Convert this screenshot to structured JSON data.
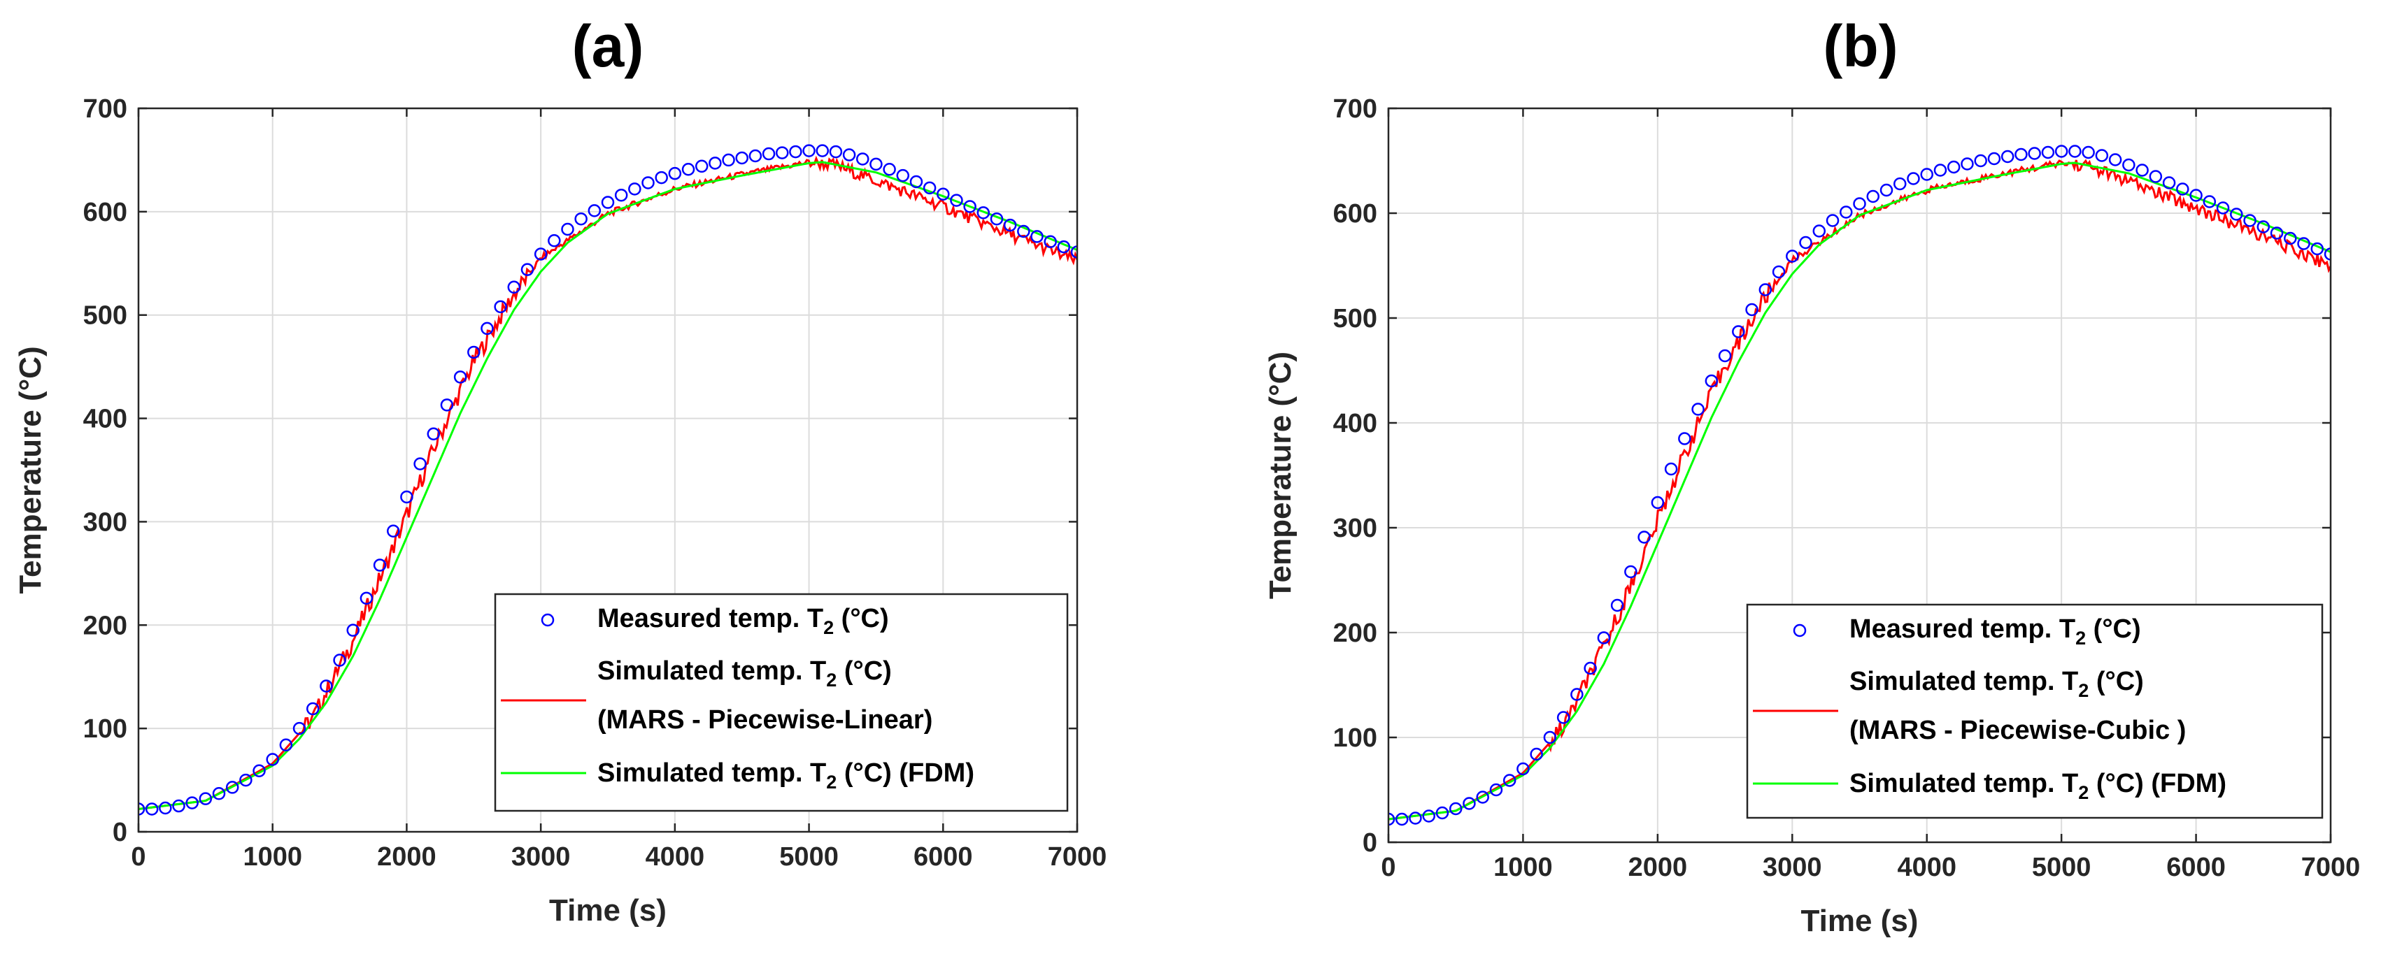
{
  "chart_data": [
    {
      "type": "line",
      "panel": "(a)",
      "xlabel": "Time (s)",
      "ylabel": "Temperature (°C)",
      "xlim": [
        0,
        7000
      ],
      "ylim": [
        0,
        700
      ],
      "xticks": [
        0,
        1000,
        2000,
        3000,
        4000,
        5000,
        6000,
        7000
      ],
      "yticks": [
        0,
        100,
        200,
        300,
        400,
        500,
        600,
        700
      ],
      "grid": true,
      "legend_position": "bottom-right",
      "series": [
        {
          "name": "Measured temp. T2 (°C)",
          "label_main": "Measured temp. T",
          "label_sub": "2",
          "label_tail": " (°C)",
          "style": "markers",
          "color": "#0000ff",
          "x": [
            0,
            100,
            200,
            300,
            400,
            500,
            600,
            700,
            800,
            900,
            1000,
            1100,
            1200,
            1300,
            1400,
            1500,
            1600,
            1700,
            1800,
            1900,
            2000,
            2100,
            2200,
            2300,
            2400,
            2500,
            2600,
            2700,
            2800,
            2900,
            3000,
            3100,
            3200,
            3300,
            3400,
            3500,
            3600,
            3700,
            3800,
            3900,
            4000,
            4100,
            4200,
            4300,
            4400,
            4500,
            4600,
            4700,
            4800,
            4900,
            5000,
            5100,
            5200,
            5300,
            5400,
            5500,
            5600,
            5700,
            5800,
            5900,
            6000,
            6100,
            6200,
            6300,
            6400,
            6500,
            6600,
            6700,
            6800,
            6900,
            7000
          ],
          "y": [
            22,
            22,
            23,
            25,
            28,
            32,
            37,
            43,
            50,
            59,
            70,
            84,
            100,
            119,
            141,
            166,
            195,
            226,
            258,
            291,
            324,
            356,
            385,
            413,
            440,
            464,
            487,
            508,
            527,
            544,
            559,
            572,
            583,
            593,
            601,
            609,
            616,
            622,
            628,
            633,
            637,
            641,
            644,
            647,
            650,
            652,
            654,
            656,
            657,
            658,
            659,
            659,
            658,
            655,
            651,
            646,
            641,
            635,
            629,
            623,
            617,
            611,
            605,
            599,
            593,
            587,
            581,
            576,
            571,
            566,
            561
          ]
        },
        {
          "name": "Simulated temp. T2 (°C) (MARS - Piecewise-Linear)",
          "label_main": "Simulated temp. T",
          "label_sub": "2",
          "label_tail": " (°C)",
          "label_line2": "(MARS - Piecewise-Linear)",
          "style": "line",
          "color": "#ff0000",
          "x": [
            0,
            500,
            1000,
            1300,
            1600,
            1900,
            2200,
            2500,
            2800,
            3000,
            3500,
            4000,
            4500,
            5000,
            5200,
            5500,
            6000,
            6500,
            7000
          ],
          "y": [
            22,
            30,
            66,
            110,
            185,
            275,
            370,
            455,
            520,
            555,
            598,
            622,
            636,
            648,
            645,
            630,
            605,
            578,
            552
          ]
        },
        {
          "name": "Simulated temp. T2 (°C) (FDM)",
          "label_main": "Simulated temp. T",
          "label_sub": "2",
          "label_tail": " (°C) (FDM)",
          "style": "line",
          "color": "#00ff00",
          "x": [
            0,
            500,
            1000,
            1200,
            1400,
            1600,
            1800,
            2000,
            2200,
            2400,
            2600,
            2800,
            3000,
            3200,
            3500,
            4000,
            4500,
            5000,
            5100,
            5500,
            6000,
            6500,
            7000
          ],
          "y": [
            22,
            30,
            64,
            90,
            125,
            170,
            225,
            285,
            345,
            405,
            458,
            505,
            542,
            570,
            598,
            622,
            635,
            647,
            648,
            638,
            615,
            590,
            563
          ]
        }
      ]
    },
    {
      "type": "line",
      "panel": "(b)",
      "xlabel": "Time (s)",
      "ylabel": "Temperature (°C)",
      "xlim": [
        0,
        7000
      ],
      "ylim": [
        0,
        700
      ],
      "xticks": [
        0,
        1000,
        2000,
        3000,
        4000,
        5000,
        6000,
        7000
      ],
      "yticks": [
        0,
        100,
        200,
        300,
        400,
        500,
        600,
        700
      ],
      "grid": true,
      "legend_position": "bottom-right",
      "series": [
        {
          "name": "Measured temp. T2 (°C)",
          "label_main": "Measured temp. T",
          "label_sub": "2",
          "label_tail": " (°C)",
          "style": "markers",
          "color": "#0000ff",
          "x": [
            0,
            100,
            200,
            300,
            400,
            500,
            600,
            700,
            800,
            900,
            1000,
            1100,
            1200,
            1300,
            1400,
            1500,
            1600,
            1700,
            1800,
            1900,
            2000,
            2100,
            2200,
            2300,
            2400,
            2500,
            2600,
            2700,
            2800,
            2900,
            3000,
            3100,
            3200,
            3300,
            3400,
            3500,
            3600,
            3700,
            3800,
            3900,
            4000,
            4100,
            4200,
            4300,
            4400,
            4500,
            4600,
            4700,
            4800,
            4900,
            5000,
            5100,
            5200,
            5300,
            5400,
            5500,
            5600,
            5700,
            5800,
            5900,
            6000,
            6100,
            6200,
            6300,
            6400,
            6500,
            6600,
            6700,
            6800,
            6900,
            7000
          ],
          "y": [
            22,
            22,
            23,
            25,
            28,
            32,
            37,
            43,
            50,
            59,
            70,
            84,
            100,
            119,
            141,
            166,
            195,
            226,
            258,
            291,
            324,
            356,
            385,
            413,
            440,
            464,
            487,
            508,
            527,
            544,
            559,
            572,
            583,
            593,
            601,
            609,
            616,
            622,
            628,
            633,
            637,
            641,
            644,
            647,
            650,
            652,
            654,
            656,
            657,
            658,
            659,
            659,
            658,
            655,
            651,
            646,
            641,
            635,
            629,
            623,
            617,
            611,
            605,
            599,
            593,
            587,
            581,
            576,
            571,
            566,
            561
          ]
        },
        {
          "name": "Simulated temp. T2 (°C) (MARS - Piecewise-Cubic )",
          "label_main": "Simulated temp. T",
          "label_sub": "2",
          "label_tail": " (°C)",
          "label_line2": "(MARS - Piecewise-Cubic )",
          "style": "line",
          "color": "#ff0000",
          "x": [
            0,
            500,
            1000,
            1300,
            1600,
            1900,
            2200,
            2500,
            2800,
            3000,
            3500,
            4000,
            4500,
            5000,
            5200,
            5500,
            6000,
            6500,
            7000
          ],
          "y": [
            22,
            30,
            66,
            110,
            185,
            275,
            370,
            455,
            520,
            555,
            598,
            622,
            636,
            648,
            645,
            630,
            605,
            578,
            550
          ]
        },
        {
          "name": "Simulated temp. T2 (°C) (FDM)",
          "label_main": "Simulated temp. T",
          "label_sub": "2",
          "label_tail": " (°C) (FDM)",
          "style": "line",
          "color": "#00ff00",
          "x": [
            0,
            500,
            1000,
            1200,
            1400,
            1600,
            1800,
            2000,
            2200,
            2400,
            2600,
            2800,
            3000,
            3200,
            3500,
            4000,
            4500,
            5000,
            5100,
            5500,
            6000,
            6500,
            7000
          ],
          "y": [
            22,
            30,
            64,
            90,
            125,
            170,
            225,
            285,
            345,
            405,
            458,
            505,
            542,
            570,
            598,
            622,
            635,
            647,
            648,
            638,
            615,
            590,
            563
          ]
        }
      ]
    }
  ]
}
